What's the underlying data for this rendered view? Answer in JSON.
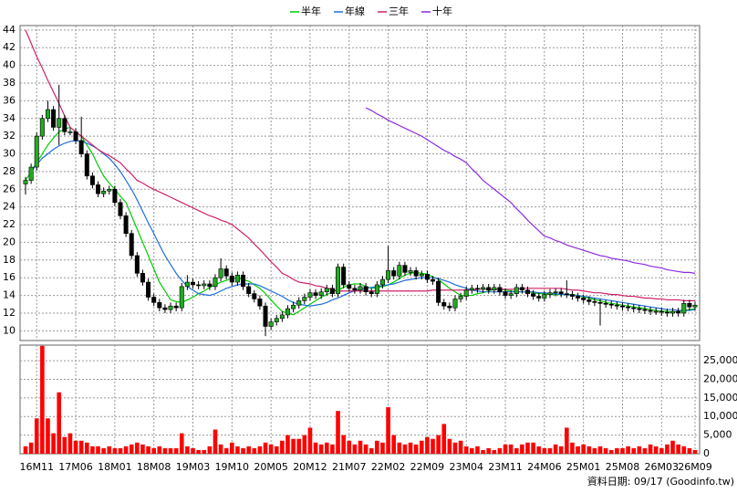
{
  "chart_data": {
    "type": "candlestick",
    "legend": "top",
    "grid": true,
    "footer": "資料日期: 09/17 (Goodinfo.tw)",
    "categories": [
      null,
      null,
      "16M11",
      null,
      null,
      null,
      null,
      null,
      null,
      "17M06",
      null,
      null,
      null,
      null,
      null,
      null,
      "18M01",
      null,
      null,
      null,
      null,
      null,
      null,
      "18M08",
      null,
      null,
      null,
      null,
      null,
      null,
      "19M03",
      null,
      null,
      null,
      null,
      null,
      null,
      "19M10",
      null,
      null,
      null,
      null,
      null,
      null,
      "20M05",
      null,
      null,
      null,
      null,
      null,
      null,
      "20M12",
      null,
      null,
      null,
      null,
      null,
      null,
      "21M07",
      null,
      null,
      null,
      null,
      null,
      null,
      "22M02",
      null,
      null,
      null,
      null,
      null,
      null,
      "22M09",
      null,
      null,
      null,
      null,
      null,
      null,
      "23M04",
      null,
      null,
      null,
      null,
      null,
      null,
      "23M11",
      null,
      null,
      null,
      null,
      null,
      null,
      "24M06",
      null,
      null,
      null,
      null,
      null,
      null,
      "25M01",
      null,
      null,
      null,
      null,
      null,
      null,
      "25M08",
      null,
      null,
      null,
      null,
      null,
      null,
      "26M03",
      null,
      null,
      null,
      null,
      null,
      "26M09"
    ],
    "ohlc": {
      "up_color": "#22aa22",
      "down_color": "#000000",
      "open": [
        26.6,
        27.0,
        28.5,
        32.0,
        34.0,
        35.0,
        33.0,
        34.0,
        32.5,
        32.5,
        31.5,
        30.0,
        27.5,
        26.5,
        25.5,
        25.8,
        26.0,
        24.5,
        23.0,
        21.0,
        18.5,
        16.5,
        15.5,
        13.8,
        13.2,
        12.6,
        12.4,
        12.8,
        12.6,
        15.0,
        15.5,
        15.2,
        15.1,
        15.3,
        15.0,
        16.0,
        17.0,
        16.2,
        15.5,
        16.3,
        15.0,
        14.2,
        13.6,
        12.8,
        10.5,
        11.0,
        11.4,
        11.8,
        12.5,
        12.9,
        13.4,
        13.8,
        14.3,
        14.0,
        14.4,
        14.8,
        14.2,
        17.2,
        15.2,
        14.8,
        14.6,
        15.0,
        14.4,
        14.2,
        15.2,
        15.8,
        16.8,
        16.2,
        17.4,
        16.6,
        16.8,
        16.2,
        16.4,
        15.8,
        15.6,
        13.2,
        12.8,
        12.6,
        13.6,
        13.9,
        14.6,
        14.8,
        14.7,
        14.9,
        14.6,
        14.9,
        14.4,
        14.0,
        14.2,
        14.9,
        14.6,
        14.2,
        13.9,
        13.7,
        14.1,
        14.3,
        14.4,
        14.2,
        14.1,
        13.9,
        13.7,
        13.5,
        13.3,
        13.2,
        13.1,
        13.0,
        12.9,
        12.8,
        12.7,
        12.6,
        12.5,
        12.4,
        12.3,
        12.2,
        12.2,
        12.1,
        12.0,
        12.2,
        12.0,
        13.1,
        12.7
      ],
      "high": [
        27.4,
        28.9,
        32.4,
        34.4,
        36,
        35.4,
        37.8,
        34.4,
        32.9,
        32.9,
        34.2,
        30.4,
        27.9,
        26.9,
        26.2,
        26.4,
        26.4,
        24.9,
        23.4,
        21.4,
        18.9,
        16.9,
        15.9,
        14.2,
        13.6,
        13.0,
        13.2,
        13.2,
        15.4,
        16.3,
        15.9,
        15.6,
        15.7,
        15.7,
        16.4,
        18.2,
        17.4,
        16.6,
        16.7,
        16.7,
        15.4,
        14.6,
        14.0,
        13.2,
        11.4,
        11.8,
        12.2,
        12.9,
        13.3,
        13.8,
        14.2,
        14.7,
        14.7,
        14.8,
        15.2,
        15.2,
        17.6,
        17.6,
        15.6,
        15.2,
        15.4,
        15.4,
        14.8,
        15.6,
        16.2,
        19.6,
        17.2,
        17.8,
        17.8,
        17.2,
        17.2,
        16.8,
        16.8,
        16.2,
        16.0,
        13.6,
        13.2,
        14.0,
        14.3,
        15.0,
        15.2,
        15.2,
        15.3,
        15.3,
        15.3,
        15.3,
        14.8,
        14.6,
        15.3,
        15.3,
        15.0,
        14.6,
        14.3,
        14.5,
        14.7,
        14.8,
        14.8,
        15.7,
        14.5,
        14.3,
        14.1,
        13.9,
        13.7,
        13.6,
        13.5,
        13.4,
        13.3,
        13.2,
        13.1,
        13.0,
        12.9,
        12.8,
        12.7,
        12.6,
        12.6,
        12.5,
        12.6,
        12.6,
        13.5,
        13.5,
        13.3
      ],
      "low": [
        25.4,
        26.6,
        28.1,
        31.6,
        33.6,
        32.6,
        31.0,
        32.1,
        32.1,
        31.1,
        29.6,
        27.1,
        26.1,
        25.1,
        25.1,
        25.4,
        24.1,
        22.6,
        20.6,
        18.1,
        16.1,
        15.1,
        13.4,
        12.8,
        12.2,
        12.0,
        12.0,
        12.2,
        12.2,
        14.6,
        14.8,
        14.7,
        14.7,
        14.6,
        14.6,
        15.6,
        15.8,
        15.1,
        15.1,
        14.6,
        13.8,
        13.2,
        12.4,
        9.4,
        10.1,
        10.6,
        11.0,
        11.4,
        12.1,
        12.5,
        13.0,
        13.4,
        13.6,
        13.6,
        14.0,
        13.8,
        13.8,
        14.8,
        14.4,
        14.2,
        14.2,
        14.0,
        13.8,
        13.8,
        14.8,
        15.4,
        15.8,
        15.8,
        16.2,
        16.2,
        15.8,
        15.8,
        15.4,
        15.2,
        12.8,
        12.4,
        12.2,
        12.2,
        13.2,
        13.5,
        14.2,
        14.3,
        14.3,
        14.2,
        14.2,
        14.0,
        13.6,
        13.6,
        13.8,
        14.2,
        13.8,
        13.5,
        13.3,
        13.3,
        13.7,
        13.9,
        13.8,
        13.7,
        13.5,
        13.3,
        13.1,
        12.9,
        12.8,
        10.6,
        12.6,
        12.5,
        12.4,
        12.3,
        12.2,
        12.1,
        12.0,
        11.9,
        11.8,
        11.8,
        11.7,
        11.6,
        11.6,
        11.6,
        11.6,
        12.3,
        12.3
      ],
      "close": [
        27.0,
        28.5,
        32.0,
        34.0,
        35.0,
        33.0,
        34.0,
        32.5,
        32.5,
        31.5,
        30.0,
        27.5,
        26.5,
        25.5,
        25.8,
        26.0,
        24.5,
        23.0,
        21.0,
        18.5,
        16.5,
        15.5,
        13.8,
        13.2,
        12.6,
        12.4,
        12.8,
        12.6,
        15.0,
        15.5,
        15.2,
        15.1,
        15.3,
        15.0,
        16.0,
        17.0,
        16.2,
        15.5,
        16.3,
        15.0,
        14.2,
        13.6,
        12.8,
        10.5,
        11.0,
        11.4,
        11.8,
        12.5,
        12.9,
        13.4,
        13.8,
        14.3,
        14.0,
        14.4,
        14.8,
        14.2,
        17.2,
        15.2,
        14.8,
        14.6,
        15.0,
        14.4,
        14.2,
        15.2,
        15.8,
        16.8,
        16.2,
        17.4,
        16.6,
        16.8,
        16.2,
        16.4,
        15.8,
        15.6,
        13.2,
        12.8,
        12.6,
        13.6,
        13.9,
        14.6,
        14.8,
        14.7,
        14.9,
        14.6,
        14.9,
        14.4,
        14.0,
        14.2,
        14.9,
        14.6,
        14.2,
        13.9,
        13.7,
        14.1,
        14.3,
        14.4,
        14.2,
        14.1,
        13.9,
        13.7,
        13.5,
        13.3,
        13.2,
        13.1,
        13.0,
        12.9,
        12.8,
        12.7,
        12.6,
        12.5,
        12.4,
        12.3,
        12.2,
        12.2,
        12.1,
        12.0,
        12.2,
        12.0,
        13.1,
        12.7,
        12.9
      ]
    },
    "ylim": [
      8.9,
      44.5
    ],
    "yticks": [
      10,
      12,
      14,
      16,
      18,
      20,
      22,
      24,
      26,
      28,
      30,
      32,
      34,
      36,
      38,
      40,
      42,
      44
    ],
    "series": [
      {
        "name": "半年",
        "color": "#00cc00",
        "values": [
          27,
          28,
          29,
          30,
          31,
          31.8,
          32.5,
          32.8,
          33,
          32.5,
          32,
          31,
          30,
          28.7,
          27.5,
          26.7,
          26,
          25.2,
          24.5,
          23,
          21.5,
          20,
          18.5,
          17,
          15.5,
          14.5,
          13.5,
          13.3,
          13.2,
          13.5,
          13.8,
          14.2,
          14.5,
          14.9,
          15.2,
          15.5,
          15.7,
          15.9,
          16,
          15.8,
          15.6,
          15.2,
          14.8,
          14.2,
          13.5,
          12.8,
          12.2,
          12,
          11.8,
          12.2,
          12.6,
          13,
          13.4,
          13.8,
          14.1,
          14.4,
          14.6,
          14.9,
          15.2,
          15.3,
          15.3,
          15,
          14.8,
          14.9,
          15,
          15.2,
          15.5,
          15.9,
          16.3,
          16.5,
          16.6,
          16.5,
          16.4,
          16.1,
          15.8,
          15.3,
          14.8,
          14.4,
          14,
          14,
          14,
          14.2,
          14.3,
          14.5,
          14.7,
          14.7,
          14.6,
          14.5,
          14.4,
          14.4,
          14.4,
          14.3,
          14.2,
          14.2,
          14.1,
          14.1,
          14.1,
          14.1,
          14.1,
          14,
          13.8,
          13.7,
          13.5,
          13.4,
          13.2,
          13.1,
          13,
          12.9,
          12.8,
          12.7,
          12.6,
          12.5,
          12.4,
          12.3,
          12.2,
          12.2,
          12.1,
          12.2,
          12.3,
          12.4,
          12.5
        ]
      },
      {
        "name": "年線",
        "color": "#1e6fd9",
        "values": [
          null,
          28,
          28.8,
          29.5,
          30,
          30.5,
          30.9,
          31.2,
          31.4,
          31.5,
          31.4,
          31.2,
          30.9,
          30.5,
          30,
          29.5,
          28.8,
          28,
          27,
          26,
          24.8,
          23.5,
          22.2,
          21,
          19.7,
          18.5,
          17.5,
          16.5,
          15.7,
          15,
          14.6,
          14.2,
          14.1,
          14,
          14.2,
          14.5,
          14.8,
          15,
          15.2,
          15.3,
          15.3,
          15.3,
          15.1,
          14.8,
          14.5,
          14.2,
          13.9,
          13.5,
          13.2,
          13,
          12.9,
          12.8,
          12.9,
          13,
          13.2,
          13.5,
          13.7,
          14,
          14.3,
          14.5,
          14.7,
          14.8,
          14.9,
          15,
          15.1,
          15.2,
          15.3,
          15.5,
          15.7,
          15.8,
          15.9,
          16,
          16,
          16,
          15.9,
          15.7,
          15.5,
          15.2,
          15,
          14.8,
          14.6,
          14.5,
          14.4,
          14.4,
          14.4,
          14.4,
          14.4,
          14.4,
          14.4,
          14.4,
          14.4,
          14.4,
          14.3,
          14.3,
          14.2,
          14.2,
          14.1,
          14.1,
          14,
          14,
          13.9,
          13.8,
          13.7,
          13.6,
          13.5,
          13.4,
          13.3,
          13.2,
          13.1,
          13,
          12.9,
          12.8,
          12.7,
          12.6,
          12.5,
          12.4,
          12.4,
          12.3,
          12.3,
          12.3,
          12.4
        ]
      },
      {
        "name": "三年",
        "color": "#d0206a",
        "values": [
          44,
          42.5,
          41,
          39.7,
          38.3,
          37,
          35.7,
          34.3,
          33,
          32.5,
          32,
          31.5,
          31,
          30.5,
          30.1,
          29.8,
          29.4,
          29,
          28.3,
          27.7,
          27,
          26.7,
          26.3,
          26,
          25.7,
          25.4,
          25.1,
          24.8,
          24.5,
          24.2,
          23.9,
          23.6,
          23.3,
          23,
          22.8,
          22.5,
          22.3,
          22,
          21.5,
          21,
          20.5,
          19.8,
          19.2,
          18.5,
          17.8,
          17.2,
          16.5,
          16.2,
          15.8,
          15.5,
          15.4,
          15.3,
          15.1,
          15,
          14.8,
          14.7,
          14.5,
          14.5,
          14.5,
          14.5,
          14.5,
          14.5,
          14.5,
          14.5,
          14.5,
          14.5,
          14.5,
          14.5,
          14.5,
          14.5,
          14.5,
          14.5,
          14.5,
          14.6,
          14.6,
          14.6,
          14.6,
          14.6,
          14.6,
          14.6,
          14.6,
          14.7,
          14.7,
          14.7,
          14.7,
          14.7,
          14.7,
          14.7,
          14.7,
          14.8,
          14.8,
          14.8,
          14.8,
          14.8,
          14.8,
          14.8,
          14.8,
          14.7,
          14.6,
          14.6,
          14.5,
          14.4,
          14.3,
          14.3,
          14.2,
          14.1,
          14.1,
          14,
          13.9,
          13.9,
          13.8,
          13.7,
          13.7,
          13.6,
          13.6,
          13.5,
          13.5,
          13.5,
          13.4,
          13.4,
          13.4
        ]
      },
      {
        "name": "十年",
        "color": "#8a2be2",
        "values": [
          null,
          null,
          null,
          null,
          null,
          null,
          null,
          null,
          null,
          null,
          null,
          null,
          null,
          null,
          null,
          null,
          null,
          null,
          null,
          null,
          null,
          null,
          null,
          null,
          null,
          null,
          null,
          null,
          null,
          null,
          null,
          null,
          null,
          null,
          null,
          null,
          null,
          null,
          null,
          null,
          null,
          null,
          null,
          null,
          null,
          null,
          null,
          null,
          null,
          null,
          null,
          null,
          null,
          null,
          null,
          null,
          null,
          null,
          null,
          null,
          null,
          35.2,
          34.9,
          34.5,
          34.2,
          33.8,
          33.5,
          33.2,
          32.9,
          32.6,
          32.3,
          32,
          31.6,
          31.2,
          30.8,
          30.4,
          30.1,
          29.7,
          29.4,
          29,
          28.3,
          27.7,
          27,
          26.5,
          26,
          25.5,
          25,
          24.5,
          23.8,
          23.2,
          22.5,
          21.9,
          21.3,
          20.7,
          20.5,
          20.2,
          20,
          19.7,
          19.5,
          19.3,
          19.1,
          18.9,
          18.7,
          18.5,
          18.4,
          18.2,
          18.1,
          18,
          17.9,
          17.7,
          17.6,
          17.5,
          17.3,
          17.2,
          17.1,
          16.9,
          16.8,
          16.7,
          16.6,
          16.6,
          16.5
        ]
      }
    ],
    "volume": {
      "color": "#ff0000",
      "ylim": [
        0,
        29200
      ],
      "yticks": [
        0,
        {
          "value": 5000,
          "label": "5,000"
        },
        {
          "value": 10000,
          "label": "10,000"
        },
        {
          "value": 15000,
          "label": "15,000"
        },
        {
          "value": 20000,
          "label": "20,000"
        },
        {
          "value": 25000,
          "label": "25,000"
        }
      ],
      "values": [
        2000,
        3000,
        9500,
        29000,
        9500,
        5500,
        16500,
        4500,
        5500,
        3500,
        3500,
        3000,
        2000,
        2000,
        1500,
        2000,
        1500,
        1500,
        2000,
        2500,
        3000,
        2500,
        2000,
        1500,
        2000,
        1500,
        1500,
        1500,
        5500,
        2000,
        1500,
        1000,
        1000,
        2000,
        6500,
        2500,
        1500,
        3000,
        2000,
        1500,
        2000,
        1500,
        2000,
        3000,
        2500,
        2000,
        3500,
        5000,
        4000,
        4000,
        5000,
        7000,
        3000,
        2500,
        3000,
        2500,
        11500,
        5000,
        3500,
        2500,
        3500,
        2500,
        1500,
        3500,
        3000,
        12500,
        5000,
        3000,
        2500,
        3000,
        2500,
        3500,
        4500,
        4000,
        5000,
        8000,
        4000,
        3000,
        3500,
        2000,
        1500,
        2000,
        1000,
        1500,
        1000,
        1500,
        2500,
        2500,
        1500,
        2500,
        3000,
        3000,
        2000,
        1500,
        1500,
        2500,
        2000,
        7000,
        3000,
        2000,
        2500,
        2000,
        1500,
        2000,
        1500,
        1000,
        1500,
        1500,
        2000,
        1500,
        2000,
        1500,
        2500,
        2000,
        1500,
        2500,
        3500,
        2500,
        2000,
        1500,
        1000
      ]
    }
  }
}
